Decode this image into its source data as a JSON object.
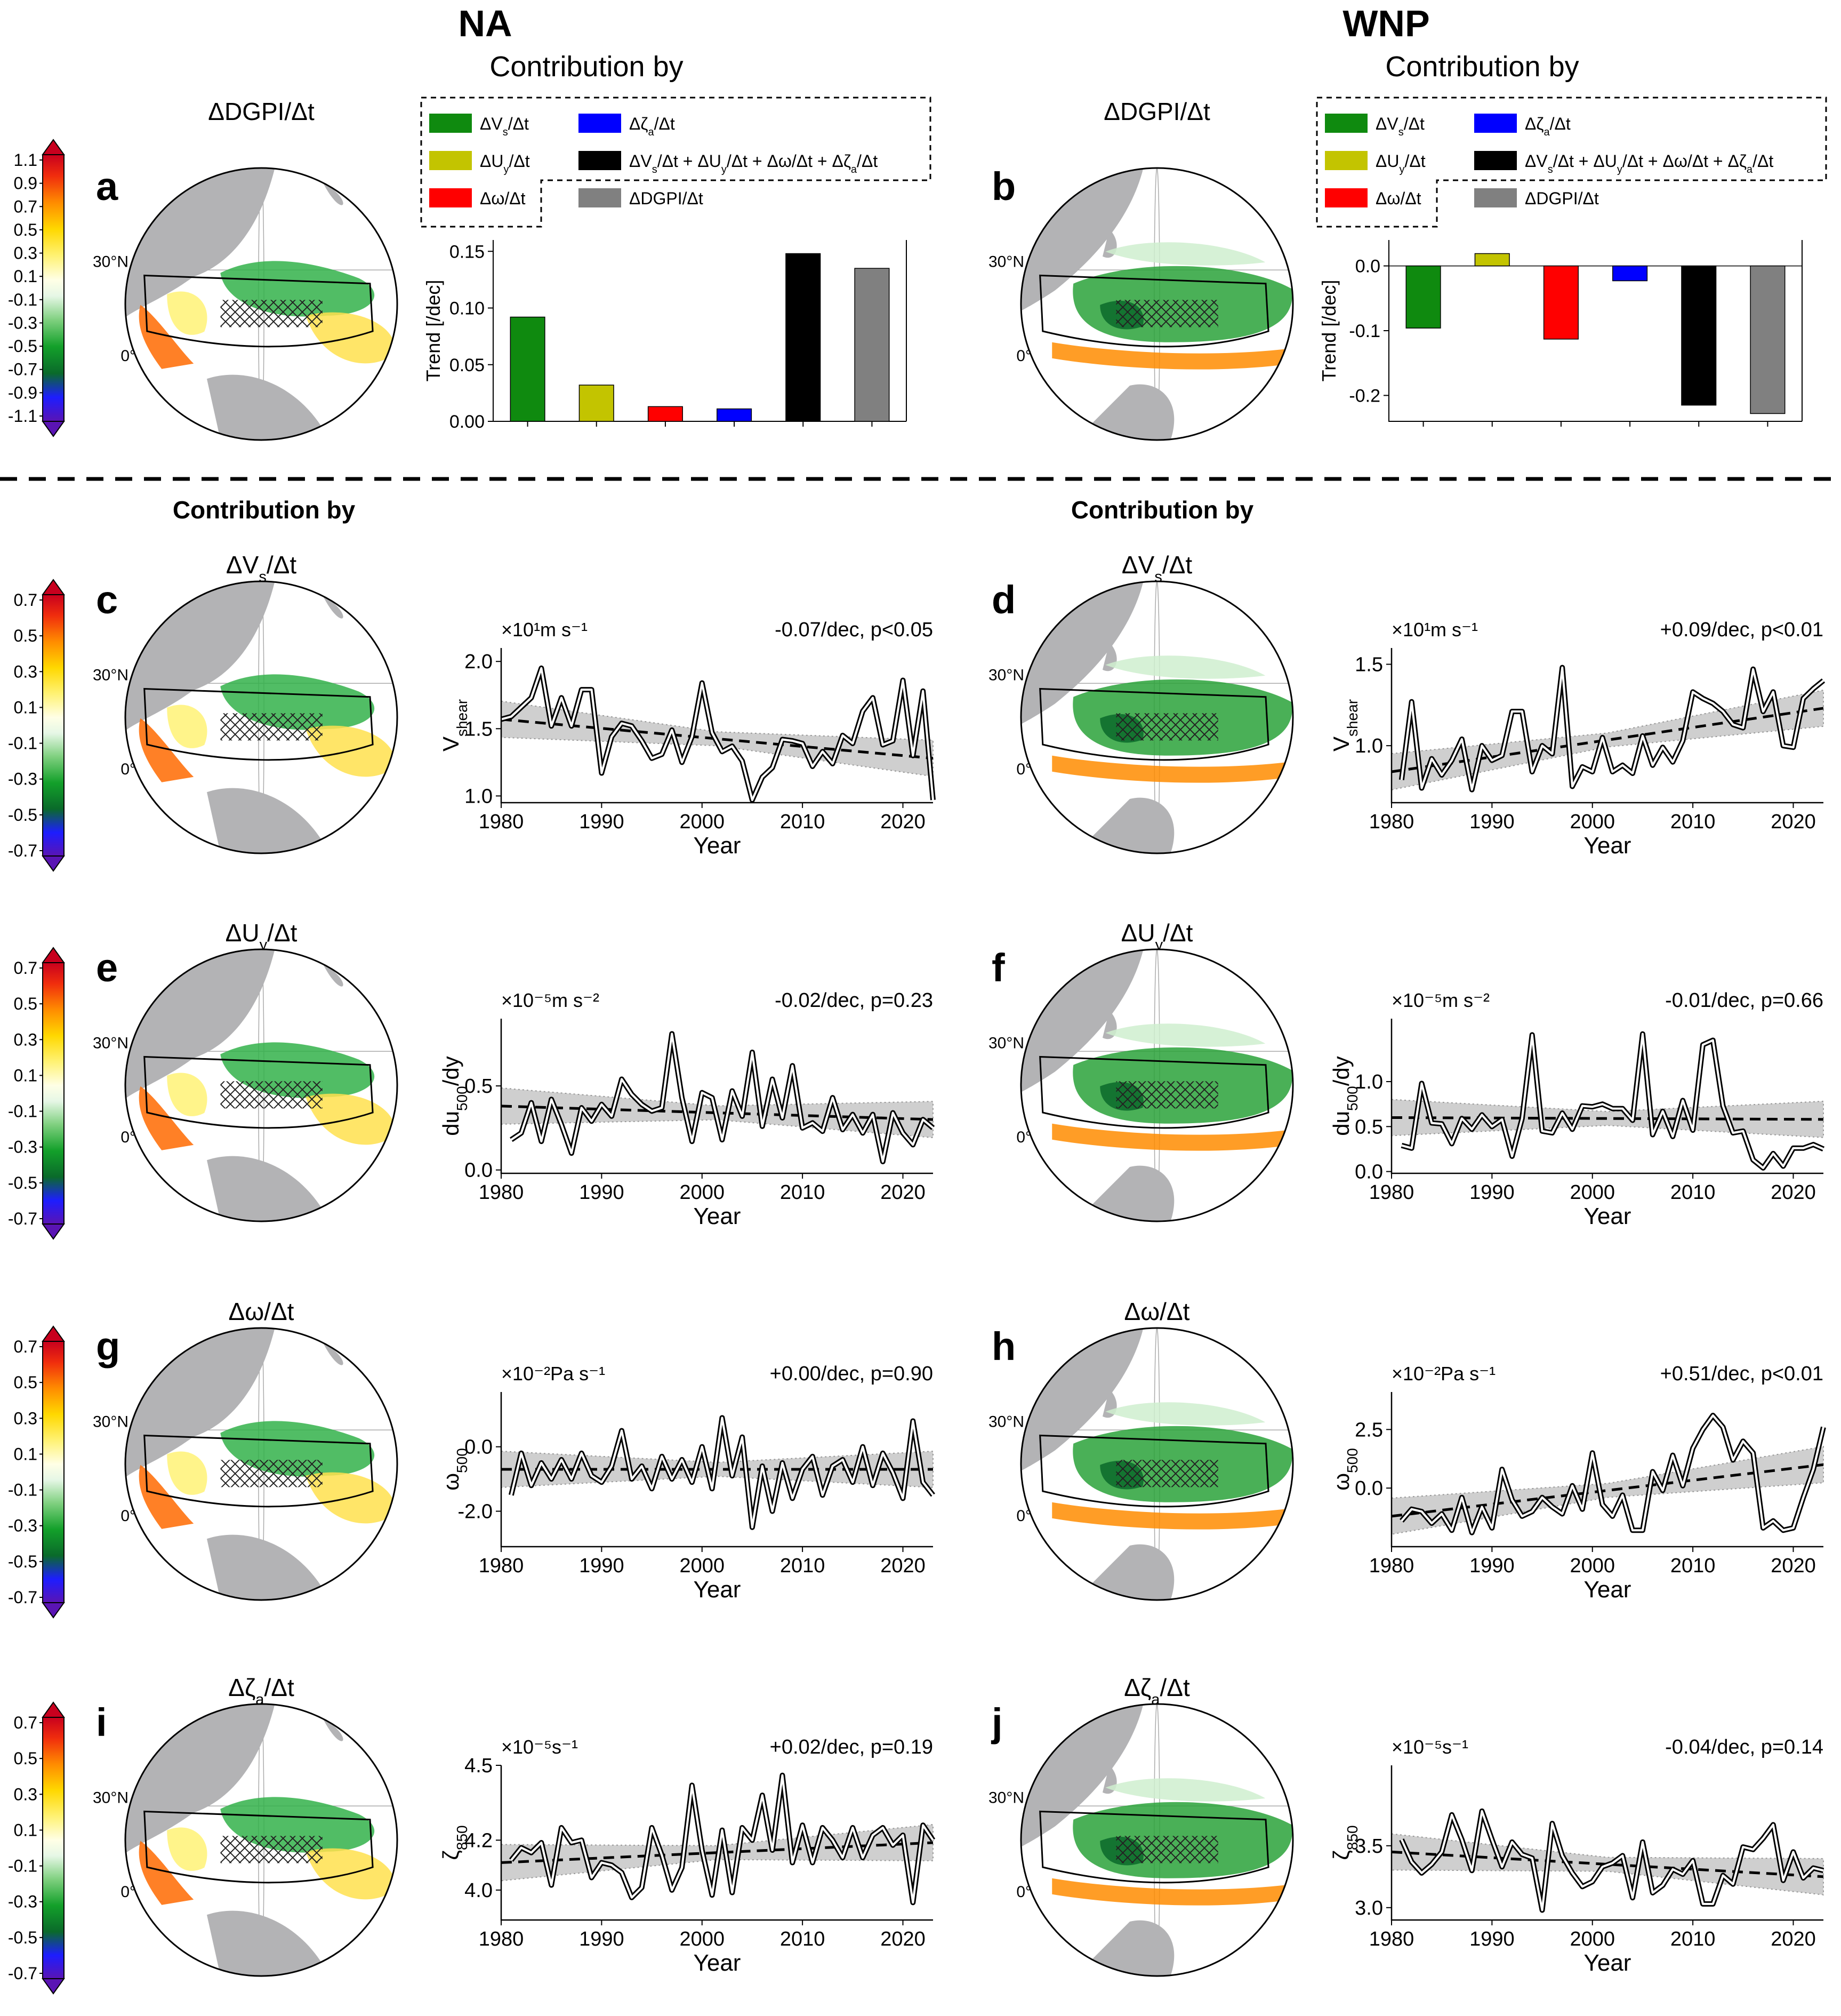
{
  "headers": {
    "na": "NA",
    "wnp": "WNP"
  },
  "sections": {
    "contribution_by": "Contribution by"
  },
  "colors": {
    "vs": "#0f8a0f",
    "uy": "#c3c400",
    "omega": "#ff0000",
    "zeta": "#0000ff",
    "sum": "#000000",
    "dgpi": "#808080",
    "land": "#b3b3b5",
    "ocean": "#ffffff",
    "hatch": "#222222"
  },
  "colorbar_top": {
    "ticks": [
      "1.1",
      "0.9",
      "0.7",
      "0.5",
      "0.3",
      "0.1",
      "-0.1",
      "-0.3",
      "-0.5",
      "-0.7",
      "-0.9",
      "-1.1"
    ]
  },
  "colorbar_sub": {
    "ticks": [
      "0.7",
      "0.5",
      "0.3",
      "0.1",
      "-0.1",
      "-0.3",
      "-0.5",
      "-0.7"
    ]
  },
  "map_labels": {
    "lat30": "30°N",
    "lat0": "0°"
  },
  "panels": {
    "a": {
      "letter": "a",
      "title": "ΔDGPI/Δt"
    },
    "b": {
      "letter": "b",
      "title": "ΔDGPI/Δt"
    },
    "c": {
      "letter": "c",
      "title": "ΔVs/Δt"
    },
    "d": {
      "letter": "d",
      "title": "ΔVs/Δt"
    },
    "e": {
      "letter": "e",
      "title": "ΔUy/Δt"
    },
    "f": {
      "letter": "f",
      "title": "ΔUy/Δt"
    },
    "g": {
      "letter": "g",
      "title": "Δω/Δt"
    },
    "h": {
      "letter": "h",
      "title": "Δω/Δt"
    },
    "i": {
      "letter": "i",
      "title": "Δζa/Δt"
    },
    "j": {
      "letter": "j",
      "title": "Δζa/Δt"
    }
  },
  "legend": {
    "title": "Contribution by",
    "items": [
      "ΔVs/Δt",
      "ΔUy/Δt",
      "Δω/Δt",
      "Δζa/Δt",
      "ΔVs/Δt + ΔUy/Δt + Δω/Δt + Δζa/Δt",
      "ΔDGPI/Δt"
    ]
  },
  "chart_data": [
    {
      "id": "a-bar",
      "type": "bar",
      "ylabel": "Trend [/dec]",
      "ylim": [
        0,
        0.16
      ],
      "yticks": [
        "0.00",
        "0.05",
        "0.10",
        "0.15"
      ],
      "categories": [
        "ΔVs/Δt",
        "ΔUy/Δt",
        "Δω/Δt",
        "Δζa/Δt",
        "ΔVs/Δt + ΔUy/Δt + Δω/Δt + Δζa/Δt",
        "ΔDGPI/Δt"
      ],
      "values": [
        0.092,
        0.032,
        0.013,
        0.011,
        0.148,
        0.135
      ]
    },
    {
      "id": "b-bar",
      "type": "bar",
      "ylabel": "Trend [/dec]",
      "ylim": [
        -0.24,
        0.04
      ],
      "yticks": [
        "0.0",
        "-0.1",
        "-0.2"
      ],
      "categories": [
        "ΔVs/Δt",
        "ΔUy/Δt",
        "Δω/Δt",
        "Δζa/Δt",
        "ΔVs/Δt + ΔUy/Δt + Δω/Δt + Δζa/Δt",
        "ΔDGPI/Δt"
      ],
      "values": [
        -0.096,
        0.019,
        -0.113,
        -0.023,
        -0.215,
        -0.228
      ]
    },
    {
      "id": "c-line",
      "type": "line",
      "unit": "×10¹m s⁻¹",
      "ylabel": "Vshear",
      "annotation": "-0.07/dec, p<0.05",
      "xlabel": "Year",
      "xticks": [
        "1980",
        "1990",
        "2000",
        "2010",
        "2020"
      ],
      "yticks": [
        "1.0",
        "1.5",
        "2.0"
      ],
      "ylim": [
        0.95,
        2.1
      ],
      "x": [
        1980,
        1981,
        1982,
        1983,
        1984,
        1985,
        1986,
        1987,
        1988,
        1989,
        1990,
        1991,
        1992,
        1993,
        1994,
        1995,
        1996,
        1997,
        1998,
        1999,
        2000,
        2001,
        2002,
        2003,
        2004,
        2005,
        2006,
        2007,
        2008,
        2009,
        2010,
        2011,
        2012,
        2013,
        2014,
        2015,
        2016,
        2017,
        2018,
        2019,
        2020,
        2021,
        2022,
        2023
      ],
      "values": [
        1.57,
        1.59,
        1.66,
        1.73,
        1.95,
        1.52,
        1.73,
        1.52,
        1.79,
        1.79,
        1.17,
        1.44,
        1.54,
        1.52,
        1.41,
        1.28,
        1.31,
        1.49,
        1.25,
        1.44,
        1.84,
        1.47,
        1.33,
        1.37,
        1.26,
        0.97,
        1.14,
        1.21,
        1.42,
        1.41,
        1.39,
        1.22,
        1.33,
        1.24,
        1.45,
        1.39,
        1.63,
        1.73,
        1.38,
        1.41,
        1.86,
        1.3,
        1.78,
        0.97
      ],
      "trend": [
        1.57,
        1.28
      ]
    },
    {
      "id": "d-line",
      "type": "line",
      "unit": "×10¹m s⁻¹",
      "ylabel": "Vshear",
      "annotation": "+0.09/dec, p<0.01",
      "xlabel": "Year",
      "xticks": [
        "1980",
        "1990",
        "2000",
        "2010",
        "2020"
      ],
      "yticks": [
        "1.0",
        "1.5"
      ],
      "ylim": [
        0.65,
        1.6
      ],
      "x": [
        1981,
        1982,
        1983,
        1984,
        1985,
        1986,
        1987,
        1988,
        1989,
        1990,
        1991,
        1992,
        1993,
        1994,
        1995,
        1996,
        1997,
        1998,
        1999,
        2000,
        2001,
        2002,
        2003,
        2004,
        2005,
        2006,
        2007,
        2008,
        2009,
        2010,
        2011,
        2012,
        2013,
        2014,
        2015,
        2016,
        2017,
        2018,
        2019,
        2020,
        2021,
        2022,
        2023
      ],
      "values": [
        0.79,
        1.27,
        0.74,
        0.92,
        0.82,
        0.91,
        1.04,
        0.73,
        1.0,
        0.91,
        0.94,
        1.21,
        1.21,
        0.84,
        1.0,
        0.95,
        1.48,
        0.75,
        0.87,
        0.84,
        1.05,
        0.84,
        0.88,
        0.83,
        1.06,
        0.88,
        0.99,
        0.9,
        1.03,
        1.33,
        1.29,
        1.26,
        1.21,
        1.13,
        1.11,
        1.47,
        1.21,
        1.33,
        1.0,
        0.99,
        1.29,
        1.35,
        1.4
      ],
      "trend": [
        0.84,
        1.23
      ]
    },
    {
      "id": "e-line",
      "type": "line",
      "unit": "×10⁻⁵m s⁻²",
      "ylabel": "du500/dy",
      "annotation": "-0.02/dec, p=0.23",
      "xlabel": "Year",
      "xticks": [
        "1980",
        "1990",
        "2000",
        "2010",
        "2020"
      ],
      "yticks": [
        "0.0",
        "0.5"
      ],
      "ylim": [
        -0.02,
        0.9
      ],
      "x": [
        1981,
        1982,
        1983,
        1984,
        1985,
        1986,
        1987,
        1988,
        1989,
        1990,
        1991,
        1992,
        1993,
        1994,
        1995,
        1996,
        1997,
        1998,
        1999,
        2000,
        2001,
        2002,
        2003,
        2004,
        2005,
        2006,
        2007,
        2008,
        2009,
        2010,
        2011,
        2012,
        2013,
        2014,
        2015,
        2016,
        2017,
        2018,
        2019,
        2020,
        2021,
        2022,
        2023
      ],
      "values": [
        0.18,
        0.22,
        0.4,
        0.17,
        0.42,
        0.27,
        0.1,
        0.37,
        0.29,
        0.39,
        0.32,
        0.54,
        0.45,
        0.39,
        0.35,
        0.37,
        0.81,
        0.43,
        0.17,
        0.46,
        0.43,
        0.18,
        0.47,
        0.32,
        0.7,
        0.26,
        0.54,
        0.31,
        0.62,
        0.25,
        0.28,
        0.23,
        0.43,
        0.24,
        0.33,
        0.22,
        0.33,
        0.05,
        0.34,
        0.22,
        0.15,
        0.3,
        0.25
      ],
      "trend": [
        0.38,
        0.3
      ]
    },
    {
      "id": "f-line",
      "type": "line",
      "unit": "×10⁻⁵m s⁻²",
      "ylabel": "du500/dy",
      "annotation": "-0.01/dec, p=0.66",
      "xlabel": "Year",
      "xticks": [
        "1980",
        "1990",
        "2000",
        "2010",
        "2020"
      ],
      "yticks": [
        "0.0",
        "0.5",
        "1.0"
      ],
      "ylim": [
        -0.02,
        1.7
      ],
      "x": [
        1981,
        1982,
        1983,
        1984,
        1985,
        1986,
        1987,
        1988,
        1989,
        1990,
        1991,
        1992,
        1993,
        1994,
        1995,
        1996,
        1997,
        1998,
        1999,
        2000,
        2001,
        2002,
        2003,
        2004,
        2005,
        2006,
        2007,
        2008,
        2009,
        2010,
        2011,
        2012,
        2013,
        2014,
        2015,
        2016,
        2017,
        2018,
        2019,
        2020,
        2021,
        2022,
        2023
      ],
      "values": [
        0.29,
        0.26,
        0.98,
        0.54,
        0.53,
        0.31,
        0.59,
        0.47,
        0.63,
        0.5,
        0.58,
        0.17,
        0.59,
        1.52,
        0.45,
        0.43,
        0.65,
        0.47,
        0.73,
        0.72,
        0.75,
        0.7,
        0.7,
        0.57,
        1.53,
        0.41,
        0.67,
        0.39,
        0.79,
        0.46,
        1.41,
        1.46,
        0.73,
        0.43,
        0.45,
        0.13,
        0.04,
        0.2,
        0.06,
        0.26,
        0.26,
        0.3,
        0.25
      ],
      "trend": [
        0.6,
        0.58
      ]
    },
    {
      "id": "g-line",
      "type": "line",
      "unit": "×10⁻²Pa s⁻¹",
      "ylabel": "ω500",
      "annotation": "+0.00/dec, p=0.90",
      "xlabel": "Year",
      "xticks": [
        "1980",
        "1990",
        "2000",
        "2010",
        "2020"
      ],
      "yticks": [
        "-2.0",
        "0.0"
      ],
      "ylim": [
        -3.1,
        1.7
      ],
      "x": [
        1981,
        1982,
        1983,
        1984,
        1985,
        1986,
        1987,
        1988,
        1989,
        1990,
        1991,
        1992,
        1993,
        1994,
        1995,
        1996,
        1997,
        1998,
        1999,
        2000,
        2001,
        2002,
        2003,
        2004,
        2005,
        2006,
        2007,
        2008,
        2009,
        2010,
        2011,
        2012,
        2013,
        2014,
        2015,
        2016,
        2017,
        2018,
        2019,
        2020,
        2021,
        2022,
        2023
      ],
      "values": [
        -1.5,
        -0.2,
        -1.2,
        -0.5,
        -1.0,
        -0.4,
        -1.0,
        -0.2,
        -0.9,
        -1.1,
        -0.6,
        0.5,
        -1.0,
        -0.6,
        -1.3,
        -0.3,
        -1.0,
        -0.4,
        -1.1,
        0.0,
        -1.3,
        0.9,
        -0.9,
        0.3,
        -2.5,
        -0.6,
        -2.0,
        -0.5,
        -1.6,
        -0.7,
        -0.3,
        -1.5,
        -0.6,
        -0.4,
        -1.1,
        0.0,
        -1.2,
        -0.2,
        -0.8,
        -1.6,
        0.8,
        -1.1,
        -1.5
      ],
      "trend": [
        -0.7,
        -0.7
      ]
    },
    {
      "id": "h-line",
      "type": "line",
      "unit": "×10⁻²Pa s⁻¹",
      "ylabel": "ω500",
      "annotation": "+0.51/dec, p<0.01",
      "xlabel": "Year",
      "xticks": [
        "1980",
        "1990",
        "2000",
        "2010",
        "2020"
      ],
      "yticks": [
        "0.0",
        "2.5"
      ],
      "ylim": [
        -2.5,
        4.1
      ],
      "x": [
        1981,
        1982,
        1983,
        1984,
        1985,
        1986,
        1987,
        1988,
        1989,
        1990,
        1991,
        1992,
        1993,
        1994,
        1995,
        1996,
        1997,
        1998,
        1999,
        2000,
        2001,
        2002,
        2003,
        2004,
        2005,
        2006,
        2007,
        2008,
        2009,
        2010,
        2011,
        2012,
        2013,
        2014,
        2015,
        2016,
        2017,
        2018,
        2019,
        2020,
        2021,
        2022,
        2023
      ],
      "values": [
        -1.4,
        -0.9,
        -1.0,
        -1.5,
        -1.1,
        -1.8,
        -0.4,
        -1.9,
        -0.8,
        -1.7,
        0.8,
        -0.5,
        -1.2,
        -1.0,
        -0.4,
        -0.8,
        -1.1,
        0.1,
        -0.9,
        1.5,
        -0.7,
        -1.2,
        -0.3,
        -1.8,
        -1.8,
        0.7,
        -0.1,
        1.4,
        0.1,
        1.7,
        2.5,
        3.1,
        2.6,
        1.2,
        2.0,
        1.5,
        -1.7,
        -1.4,
        -1.8,
        -1.7,
        -0.4,
        0.8,
        2.6
      ],
      "trend": [
        -1.2,
        1.0
      ]
    },
    {
      "id": "i-line",
      "type": "line",
      "unit": "×10⁻⁵s⁻¹",
      "ylabel": "ζ850",
      "annotation": "+0.02/dec, p=0.19",
      "xlabel": "Year",
      "xticks": [
        "1980",
        "1990",
        "2000",
        "2010",
        "2020"
      ],
      "yticks": [
        "4.0",
        "4.2",
        "4.5"
      ],
      "ylim": [
        3.88,
        4.5
      ],
      "x": [
        1981,
        1982,
        1983,
        1984,
        1985,
        1986,
        1987,
        1988,
        1989,
        1990,
        1991,
        1992,
        1993,
        1994,
        1995,
        1996,
        1997,
        1998,
        1999,
        2000,
        2001,
        2002,
        2003,
        2004,
        2005,
        2006,
        2007,
        2008,
        2009,
        2010,
        2011,
        2012,
        2013,
        2014,
        2015,
        2016,
        2017,
        2018,
        2019,
        2020,
        2021,
        2022,
        2023
      ],
      "values": [
        4.12,
        4.17,
        4.15,
        4.19,
        4.02,
        4.25,
        4.19,
        4.2,
        4.05,
        4.11,
        4.1,
        4.07,
        3.97,
        4.01,
        4.25,
        4.14,
        4.0,
        4.09,
        4.42,
        4.16,
        3.98,
        4.24,
        3.99,
        4.25,
        4.2,
        4.38,
        4.16,
        4.46,
        4.11,
        4.26,
        4.11,
        4.25,
        4.2,
        4.13,
        4.25,
        4.13,
        4.22,
        4.25,
        4.18,
        4.22,
        3.95,
        4.26,
        4.2
      ],
      "trend": [
        4.11,
        4.19
      ]
    },
    {
      "id": "j-line",
      "type": "line",
      "unit": "×10⁻⁵s⁻¹",
      "ylabel": "ζ850",
      "annotation": "-0.04/dec, p=0.14",
      "xlabel": "Year",
      "xticks": [
        "1980",
        "1990",
        "2000",
        "2010",
        "2020"
      ],
      "yticks": [
        "3.0",
        "3.5"
      ],
      "ylim": [
        2.9,
        4.15
      ],
      "x": [
        1981,
        1982,
        1983,
        1984,
        1985,
        1986,
        1987,
        1988,
        1989,
        1990,
        1991,
        1992,
        1993,
        1994,
        1995,
        1996,
        1997,
        1998,
        1999,
        2000,
        2001,
        2002,
        2003,
        2004,
        2005,
        2006,
        2007,
        2008,
        2009,
        2010,
        2011,
        2012,
        2013,
        2014,
        2015,
        2016,
        2017,
        2018,
        2019,
        2020,
        2021,
        2022,
        2023
      ],
      "values": [
        3.55,
        3.37,
        3.28,
        3.35,
        3.45,
        3.75,
        3.55,
        3.3,
        3.78,
        3.55,
        3.33,
        3.53,
        3.43,
        3.4,
        2.98,
        3.68,
        3.42,
        3.28,
        3.17,
        3.21,
        3.33,
        3.36,
        3.42,
        3.08,
        3.53,
        3.12,
        3.18,
        3.31,
        3.27,
        3.38,
        3.03,
        3.03,
        3.26,
        3.19,
        3.49,
        3.47,
        3.56,
        3.67,
        3.22,
        3.45,
        3.24,
        3.32,
        3.3
      ],
      "trend": [
        3.45,
        3.25
      ]
    }
  ]
}
